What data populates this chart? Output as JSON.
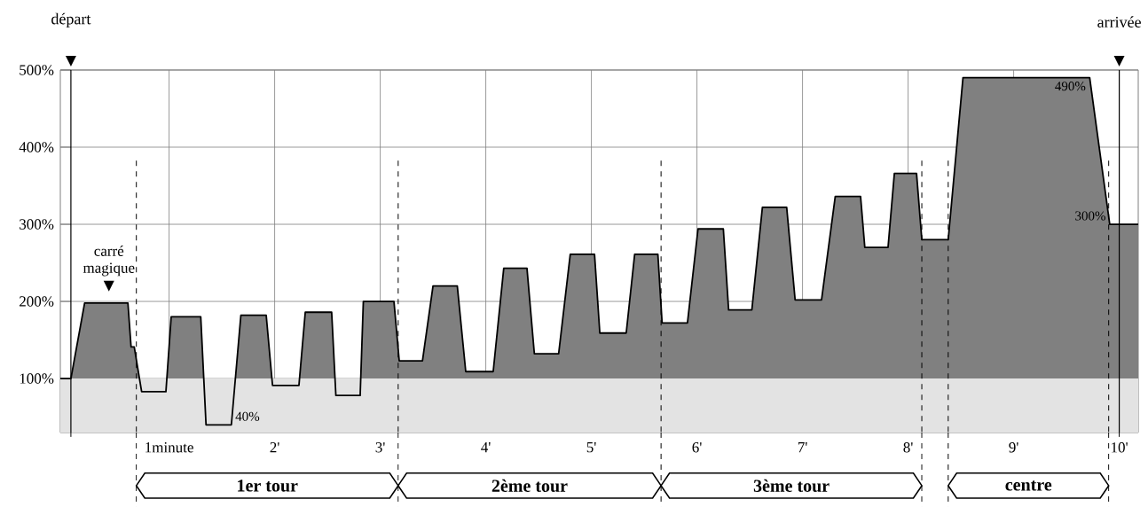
{
  "chart_data": {
    "type": "area",
    "xlim": [
      -0.03,
      10.18
    ],
    "ylim": [
      30,
      500
    ],
    "xticks": [
      {
        "value": 1,
        "label": "1minute"
      },
      {
        "value": 2,
        "label": "2'"
      },
      {
        "value": 3,
        "label": "3'"
      },
      {
        "value": 4,
        "label": "4'"
      },
      {
        "value": 5,
        "label": "5'"
      },
      {
        "value": 6,
        "label": "6'"
      },
      {
        "value": 7,
        "label": "7'"
      },
      {
        "value": 8,
        "label": "8'"
      },
      {
        "value": 9,
        "label": "9'"
      },
      {
        "value": 10,
        "label": "10'"
      }
    ],
    "yticks": [
      {
        "value": 100,
        "label": "100%"
      },
      {
        "value": 200,
        "label": "200%"
      },
      {
        "value": 300,
        "label": "300%"
      },
      {
        "value": 400,
        "label": "400%"
      },
      {
        "value": 500,
        "label": "500%"
      }
    ],
    "grid": true,
    "series": [
      {
        "color": "#808080",
        "x": [
          -0.03,
          0.07,
          0.2,
          0.61,
          0.64,
          0.67,
          0.74,
          0.97,
          1.02,
          1.3,
          1.35,
          1.59,
          1.68,
          1.92,
          1.98,
          2.23,
          2.29,
          2.54,
          2.58,
          2.81,
          2.84,
          3.13,
          3.18,
          3.4,
          3.5,
          3.73,
          3.81,
          4.07,
          4.17,
          4.39,
          4.46,
          4.69,
          4.8,
          5.03,
          5.08,
          5.33,
          5.41,
          5.63,
          5.67,
          5.91,
          6.01,
          6.25,
          6.3,
          6.52,
          6.62,
          6.85,
          6.93,
          7.18,
          7.31,
          7.55,
          7.59,
          7.81,
          7.87,
          8.08,
          8.13,
          8.38,
          8.52,
          9.72,
          9.91,
          10.18
        ],
        "values": [
          100,
          100,
          198,
          198,
          141,
          141,
          83,
          83,
          180,
          180,
          40,
          40,
          182,
          182,
          91,
          91,
          186,
          186,
          78,
          78,
          200,
          200,
          123,
          123,
          220,
          220,
          109,
          109,
          243,
          243,
          132,
          132,
          261,
          261,
          159,
          159,
          261,
          261,
          172,
          172,
          294,
          294,
          189,
          189,
          322,
          322,
          202,
          202,
          336,
          336,
          270,
          270,
          366,
          366,
          280,
          280,
          490,
          490,
          300,
          300
        ]
      }
    ],
    "bands": [
      {
        "axis": "y",
        "from": 30,
        "to": 100,
        "color": "#e3e3e3"
      }
    ],
    "ref_lines": [
      {
        "axis": "x",
        "value": 0.07,
        "label": "départ"
      },
      {
        "axis": "x",
        "value": 10,
        "label": "arrivée"
      },
      {
        "axis": "x",
        "value": 0.69,
        "line_style": "dashed"
      },
      {
        "axis": "x",
        "value": 3.17,
        "line_style": "dashed"
      },
      {
        "axis": "x",
        "value": 5.66,
        "line_style": "dashed"
      },
      {
        "axis": "x",
        "value": 8.13,
        "line_style": "dashed"
      },
      {
        "axis": "x",
        "value": 8.38,
        "line_style": "dashed"
      },
      {
        "axis": "x",
        "value": 9.9,
        "line_style": "dashed"
      }
    ],
    "annotations": [
      {
        "text": "carré magique",
        "x": 0.43,
        "y": 198
      },
      {
        "text": "40%",
        "x": 1.59,
        "y": 40
      },
      {
        "text": "490%",
        "x": 9.72,
        "y": 490
      },
      {
        "text": "300%",
        "x": 9.91,
        "y": 300
      },
      "1er tour",
      "2ème tour",
      "3ème tour",
      "centre"
    ]
  }
}
